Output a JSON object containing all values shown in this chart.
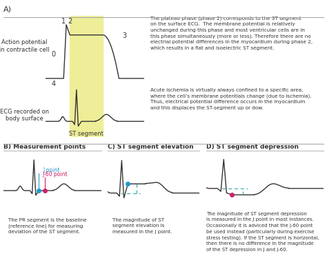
{
  "bg_color": "#ffffff",
  "title_A": "A)",
  "title_B": "B) Measurement points",
  "title_C": "C) ST segment elevation",
  "title_D": "D) ST segment depression",
  "text_right_top": "The plateau phase (phase 2) corresponds to the ST segment\non the surface ECG.  The membrane potential is relatively\nunchanged during this phase and most ventricular cells are in\nthis phase simultaneously (more or less). Therefore there are no\nelectrial potential differences in the myocardium during phase 2,\nwhich results in a flat and isoelectric ST segment.",
  "text_right_bottom": "Acute ischemia is virtually always confined to a specific area,\nwhere the cell’s membrane potentials change (due to ischemia).\nThus, electrical potential difference occurs in the myocardium\nand this displaces the ST-segment up or dow.",
  "label_action_potential": "Action potential\nin contractile cell",
  "label_ecg": "ECG recorded on\nbody surface",
  "label_st_segment": "ST segment",
  "label_0": "0",
  "label_1": "1",
  "label_2": "2",
  "label_3": "3",
  "label_4": "4",
  "text_B": "The PR segment is the baseline\n(reference line) for measuring\ndeviation of the ST segment.",
  "text_C": "The magnitude of ST\nsegment elevation is\nmeasured in the J point.",
  "text_D": "The magnitude of ST segment depression\nis measured in the J point in most instances.\nOccasionally it is adviced that the J-60 point\nbe used instead (particularly during exercise\nstress testing). If the ST segment is horizontal,\nthen there is no difference in the magnitude\nof the ST depression in J and J-60.",
  "yellow_fill": "#eeee99",
  "j_point_color": "#2299cc",
  "j60_point_color": "#cc2266",
  "line_color": "#333333",
  "dashed_line_color": "#44aaaa",
  "text_box_color": "#e6e6e6",
  "sep_color": "#aaaaaa"
}
